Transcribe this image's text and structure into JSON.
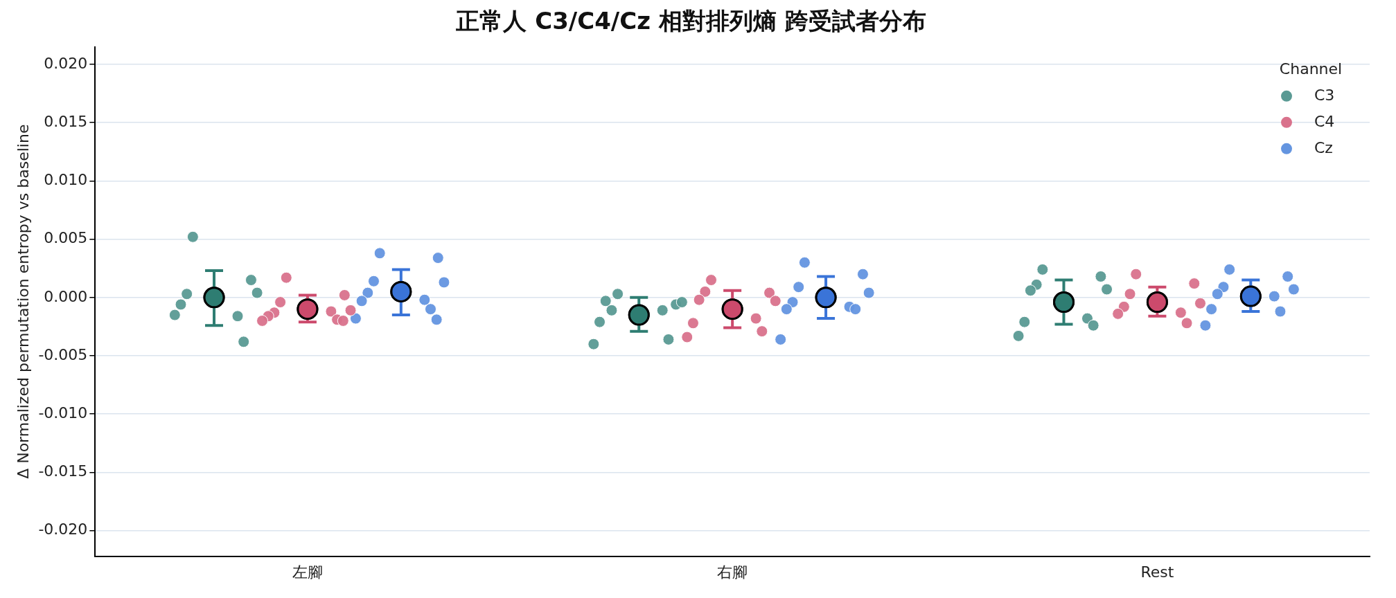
{
  "chart_data": {
    "type": "scatter",
    "title": "正常人 C3/C4/Cz 相對排列熵 跨受試者分布",
    "ylabel": "Δ Normalized permutation entropy vs baseline",
    "legend_title": "Channel",
    "categories": [
      "左腳",
      "右腳",
      "Rest"
    ],
    "ylim": [
      -0.0222,
      0.0215
    ],
    "yticks": [
      {
        "value": -0.02,
        "label": "-0.020"
      },
      {
        "value": -0.015,
        "label": "-0.015"
      },
      {
        "value": -0.01,
        "label": "-0.010"
      },
      {
        "value": -0.005,
        "label": "-0.005"
      },
      {
        "value": 0,
        "label": "0.000"
      },
      {
        "value": 0.005,
        "label": "0.005"
      },
      {
        "value": 0.01,
        "label": "0.010"
      },
      {
        "value": 0.015,
        "label": "0.015"
      },
      {
        "value": 0.02,
        "label": "0.020"
      }
    ],
    "grid": "y",
    "legend": "top right",
    "marker": "circle",
    "series": [
      {
        "name": "C3",
        "color": "#5a9a94",
        "x": [
          "左腳",
          "左腳",
          "左腳",
          "左腳",
          "左腳",
          "左腳",
          "左腳",
          "左腳",
          "右腳",
          "右腳",
          "右腳",
          "右腳",
          "右腳",
          "右腳",
          "右腳",
          "右腳",
          "右腳",
          "Rest",
          "Rest",
          "Rest",
          "Rest",
          "Rest",
          "Rest",
          "Rest",
          "Rest",
          "Rest"
        ],
        "values": [
          0.0052,
          0.0015,
          0.0003,
          0.0004,
          -0.0006,
          -0.0016,
          -0.0015,
          -0.0038,
          0.0003,
          -0.0006,
          -0.0011,
          -0.0004,
          -0.0003,
          -0.0011,
          -0.0021,
          -0.0036,
          -0.004,
          0.0024,
          0.0018,
          0.0011,
          0.0007,
          0.0006,
          -0.0018,
          -0.0021,
          -0.0024,
          -0.0033
        ]
      },
      {
        "name": "C4",
        "color": "#d9728c",
        "x": [
          "左腳",
          "左腳",
          "左腳",
          "左腳",
          "左腳",
          "左腳",
          "左腳",
          "左腳",
          "左腳",
          "左腳",
          "右腳",
          "右腳",
          "右腳",
          "右腳",
          "右腳",
          "右腳",
          "右腳",
          "右腳",
          "右腳",
          "Rest",
          "Rest",
          "Rest",
          "Rest",
          "Rest",
          "Rest",
          "Rest",
          "Rest"
        ],
        "values": [
          0.0017,
          0.0002,
          -0.0004,
          -0.0011,
          -0.0013,
          -0.0012,
          -0.0016,
          -0.0019,
          -0.002,
          -0.002,
          0.0015,
          0.0004,
          0.0005,
          -0.0003,
          -0.0002,
          -0.0018,
          -0.0022,
          -0.0029,
          -0.0034,
          0.002,
          0.0012,
          0.0003,
          -0.0005,
          -0.0008,
          -0.0013,
          -0.0014,
          -0.0022
        ]
      },
      {
        "name": "Cz",
        "color": "#6495e0",
        "x": [
          "左腳",
          "左腳",
          "左腳",
          "左腳",
          "左腳",
          "左腳",
          "左腳",
          "左腳",
          "左腳",
          "左腳",
          "右腳",
          "右腳",
          "右腳",
          "右腳",
          "右腳",
          "右腳",
          "右腳",
          "右腳",
          "右腳",
          "Rest",
          "Rest",
          "Rest",
          "Rest",
          "Rest",
          "Rest",
          "Rest",
          "Rest",
          "Rest"
        ],
        "values": [
          0.0038,
          0.0034,
          0.0014,
          0.0013,
          0.0004,
          -0.0002,
          -0.0003,
          -0.001,
          -0.0018,
          -0.0019,
          0.003,
          0.002,
          0.0009,
          0.0004,
          -0.0004,
          -0.0008,
          -0.001,
          -0.001,
          -0.0036,
          0.0024,
          0.0018,
          0.0009,
          0.0007,
          0.0003,
          0.0001,
          -0.001,
          -0.0012,
          -0.0024
        ]
      },
      {
        "color": "#2e7d72",
        "values": [
          0.0,
          -0.0015,
          -0.0004
        ],
        "errors": [
          [
            -0.0024,
            0.0023
          ],
          [
            -0.0029,
            0.0
          ],
          [
            -0.0023,
            0.0015
          ]
        ]
      },
      {
        "color": "#cc4a6c",
        "values": [
          -0.001,
          -0.001,
          -0.0004
        ],
        "errors": [
          [
            -0.0021,
            0.0002
          ],
          [
            -0.0026,
            0.0006
          ],
          [
            -0.0016,
            0.0009
          ]
        ]
      },
      {
        "color": "#3a74d8",
        "values": [
          0.0005,
          0.0,
          0.0001
        ],
        "errors": [
          [
            -0.0015,
            0.0024
          ],
          [
            -0.0018,
            0.0018
          ],
          [
            -0.0012,
            0.0015
          ]
        ]
      }
    ]
  }
}
